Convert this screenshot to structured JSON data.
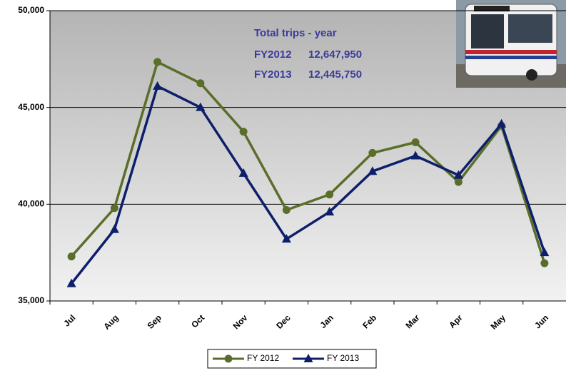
{
  "chart_data": {
    "type": "line",
    "categories": [
      "Jul",
      "Aug",
      "Sep",
      "Oct",
      "Nov",
      "Dec",
      "Jan",
      "Feb",
      "Mar",
      "Apr",
      "May",
      "Jun"
    ],
    "series": [
      {
        "name": "FY 2012",
        "color": "#5a6e2a",
        "marker": "circle",
        "values": [
          37300,
          39800,
          47350,
          46250,
          43750,
          39700,
          40500,
          42650,
          43200,
          41150,
          44050,
          36950
        ]
      },
      {
        "name": "FY 2013",
        "color": "#0d1f6b",
        "marker": "triangle",
        "values": [
          35900,
          38700,
          46100,
          45000,
          41600,
          38200,
          39600,
          41700,
          42500,
          41500,
          44150,
          37500
        ]
      }
    ],
    "ylim": [
      35000,
      50000
    ],
    "yticks": [
      {
        "value": 35000,
        "label": "35,000"
      },
      {
        "value": 40000,
        "label": "40,000"
      },
      {
        "value": 45000,
        "label": "45,000"
      },
      {
        "value": 50000,
        "label": "50,000"
      }
    ],
    "grid": true,
    "legend": "bottom",
    "annotation": {
      "title": "Total trips - year",
      "rows": [
        {
          "label": "FY2012",
          "value": "12,647,950"
        },
        {
          "label": "FY2013",
          "value": "12,445,750"
        }
      ]
    }
  }
}
